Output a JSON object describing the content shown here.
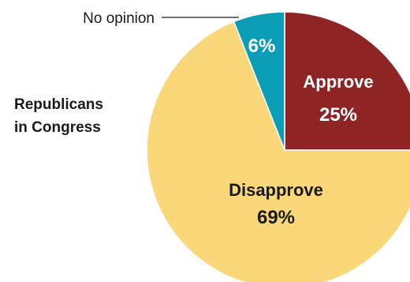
{
  "group": {
    "title_line1": "Republicans",
    "title_line2": "in Congress"
  },
  "chart_data": {
    "type": "pie",
    "slices": [
      {
        "label": "Approve",
        "value": 25,
        "value_label": "25%",
        "color": "#8e2424"
      },
      {
        "label": "Disapprove",
        "value": 69,
        "value_label": "69%",
        "color": "#fad879"
      },
      {
        "label": "No opinion",
        "value": 6,
        "value_label": "6%",
        "color": "#0a9db5"
      }
    ],
    "start": "top, clockwise",
    "separator_color": "#ffffff"
  }
}
